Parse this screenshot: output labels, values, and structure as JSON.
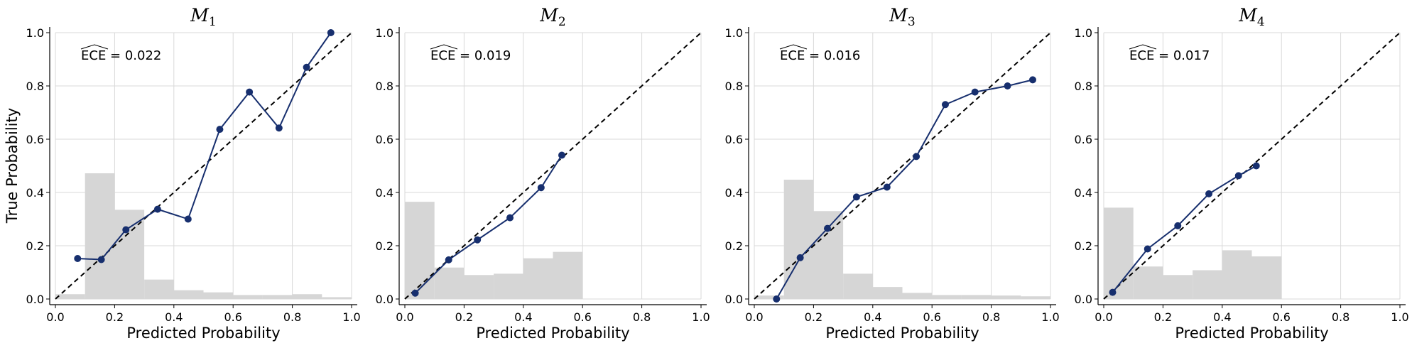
{
  "figure": {
    "x_label": "Predicted Probability",
    "y_label": "True Probability"
  },
  "style": {
    "curve_color": "#172f6e",
    "hist_color": "#d6d6d6",
    "grid_color": "#d9d9d9",
    "diagonal_color": "#000000"
  },
  "chart_data": [
    {
      "type": "line",
      "title": "M",
      "title_subscript": "1",
      "ece_value": "0.022",
      "xlim": [
        0,
        1
      ],
      "ylim": [
        0,
        1
      ],
      "x_ticks": [
        "0.0",
        "0.2",
        "0.4",
        "0.6",
        "0.8",
        "1.0"
      ],
      "y_ticks": [
        "0.0",
        "0.2",
        "0.4",
        "0.6",
        "0.8",
        "1.0"
      ],
      "calibration": {
        "x": [
          0.075,
          0.155,
          0.238,
          0.345,
          0.448,
          0.555,
          0.655,
          0.755,
          0.848,
          0.93
        ],
        "y": [
          0.152,
          0.148,
          0.26,
          0.337,
          0.3,
          0.637,
          0.777,
          0.642,
          0.87,
          1.0
        ]
      },
      "histogram": {
        "bin_edges": [
          0.0,
          0.1,
          0.2,
          0.3,
          0.4,
          0.5,
          0.6,
          0.7,
          0.8,
          0.9,
          1.0
        ],
        "heights": [
          0.018,
          0.472,
          0.335,
          0.073,
          0.033,
          0.025,
          0.015,
          0.015,
          0.018,
          0.007
        ]
      },
      "diagonal": true,
      "grid": true
    },
    {
      "type": "line",
      "title": "M",
      "title_subscript": "2",
      "ece_value": "0.019",
      "xlim": [
        0,
        1
      ],
      "ylim": [
        0,
        1
      ],
      "x_ticks": [
        "0.0",
        "0.2",
        "0.4",
        "0.6",
        "0.8",
        "1.0"
      ],
      "y_ticks": [
        "0.0",
        "0.2",
        "0.4",
        "0.6",
        "0.8",
        "1.0"
      ],
      "calibration": {
        "x": [
          0.035,
          0.148,
          0.245,
          0.355,
          0.46,
          0.53
        ],
        "y": [
          0.022,
          0.147,
          0.222,
          0.305,
          0.418,
          0.54
        ]
      },
      "histogram": {
        "bin_edges": [
          0.0,
          0.1,
          0.2,
          0.3,
          0.4,
          0.5,
          0.6
        ],
        "heights": [
          0.365,
          0.118,
          0.09,
          0.095,
          0.153,
          0.177
        ]
      },
      "diagonal": true,
      "grid": true
    },
    {
      "type": "line",
      "title": "M",
      "title_subscript": "3",
      "ece_value": "0.016",
      "xlim": [
        0,
        1
      ],
      "ylim": [
        0,
        1
      ],
      "x_ticks": [
        "0.0",
        "0.2",
        "0.4",
        "0.6",
        "0.8",
        "1.0"
      ],
      "y_ticks": [
        "0.0",
        "0.2",
        "0.4",
        "0.6",
        "0.8",
        "1.0"
      ],
      "calibration": {
        "x": [
          0.075,
          0.155,
          0.247,
          0.345,
          0.448,
          0.547,
          0.645,
          0.745,
          0.855,
          0.94
        ],
        "y": [
          0.0,
          0.155,
          0.265,
          0.383,
          0.42,
          0.535,
          0.73,
          0.777,
          0.8,
          0.823
        ]
      },
      "histogram": {
        "bin_edges": [
          0.0,
          0.1,
          0.2,
          0.3,
          0.4,
          0.5,
          0.6,
          0.7,
          0.8,
          0.9,
          1.0
        ],
        "heights": [
          0.013,
          0.448,
          0.33,
          0.095,
          0.045,
          0.023,
          0.015,
          0.015,
          0.013,
          0.01
        ]
      },
      "diagonal": true,
      "grid": true
    },
    {
      "type": "line",
      "title": "M",
      "title_subscript": "4",
      "ece_value": "0.017",
      "xlim": [
        0,
        1
      ],
      "ylim": [
        0,
        1
      ],
      "x_ticks": [
        "0.0",
        "0.2",
        "0.4",
        "0.6",
        "0.8",
        "1.0"
      ],
      "y_ticks": [
        "0.0",
        "0.2",
        "0.4",
        "0.6",
        "0.8",
        "1.0"
      ],
      "calibration": {
        "x": [
          0.03,
          0.148,
          0.25,
          0.355,
          0.455,
          0.515
        ],
        "y": [
          0.025,
          0.188,
          0.275,
          0.395,
          0.463,
          0.5
        ]
      },
      "histogram": {
        "bin_edges": [
          0.0,
          0.1,
          0.2,
          0.3,
          0.4,
          0.5,
          0.6
        ],
        "heights": [
          0.343,
          0.122,
          0.09,
          0.108,
          0.183,
          0.16
        ]
      },
      "diagonal": true,
      "grid": true
    }
  ]
}
